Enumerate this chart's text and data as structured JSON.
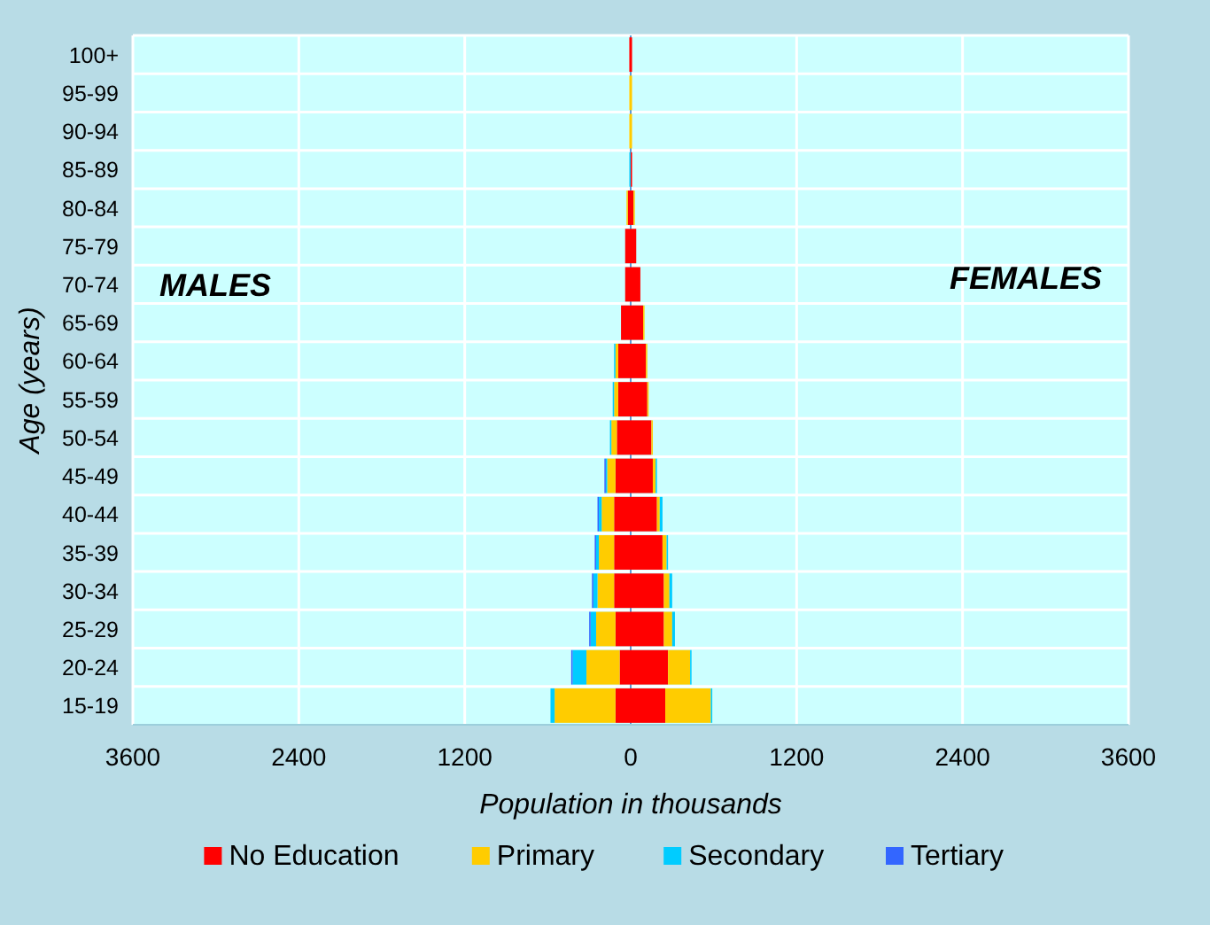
{
  "chart_data": {
    "type": "bar",
    "orientation": "horizontal",
    "stacked": true,
    "xlabel": "Population in thousands",
    "ylabel": "Age (years)",
    "annotations": [
      "MALES",
      "FEMALES"
    ],
    "categories": [
      "100+",
      "95-99",
      "90-94",
      "85-89",
      "80-84",
      "75-79",
      "70-74",
      "65-69",
      "60-64",
      "55-59",
      "50-54",
      "45-49",
      "40-44",
      "35-39",
      "30-34",
      "25-29",
      "20-24",
      "15-19"
    ],
    "series": [
      {
        "name": "No Education",
        "color": "#ff0000",
        "values": [
          -10,
          null,
          null,
          null,
          -20,
          -40,
          -40,
          -70,
          -90,
          -90,
          -100,
          -110,
          -120,
          -120,
          -120,
          -110,
          -80,
          -110
        ]
      },
      {
        "name": "Primary",
        "color": "#ffcc00",
        "values": [
          null,
          -10,
          -10,
          null,
          -10,
          null,
          null,
          null,
          -20,
          -30,
          -40,
          -60,
          -90,
          -110,
          -120,
          -140,
          -240,
          -440
        ]
      },
      {
        "name": "Secondary",
        "color": "#00ccff",
        "values": [
          null,
          null,
          null,
          -10,
          null,
          null,
          null,
          null,
          -10,
          -10,
          -10,
          -10,
          -20,
          -20,
          -30,
          -40,
          -100,
          -30
        ]
      },
      {
        "name": "Tertiary",
        "color": "#3366ff",
        "values": [
          null,
          null,
          null,
          null,
          null,
          null,
          null,
          null,
          null,
          null,
          null,
          -10,
          -10,
          -10,
          -10,
          -10,
          -10,
          null
        ]
      },
      {
        "color": "#ff0000",
        "values": [
          10,
          null,
          null,
          10,
          20,
          40,
          70,
          90,
          110,
          120,
          150,
          160,
          190,
          230,
          240,
          240,
          270,
          250
        ]
      },
      {
        "color": "#ffcc00",
        "values": [
          null,
          10,
          10,
          null,
          10,
          null,
          null,
          10,
          10,
          10,
          10,
          20,
          20,
          30,
          40,
          60,
          160,
          330
        ]
      },
      {
        "color": "#00ccff",
        "values": [
          null,
          null,
          null,
          null,
          null,
          null,
          null,
          null,
          null,
          null,
          null,
          10,
          20,
          10,
          20,
          20,
          10,
          10
        ]
      }
    ],
    "ref_lines": [
      {
        "axis": "x",
        "value": 0,
        "color": "#5b9bd5"
      }
    ],
    "xlim": [
      -3600,
      3600
    ],
    "xticks": [
      {
        "value": -3600,
        "label": "3600"
      },
      {
        "value": -2400,
        "label": "2400"
      },
      {
        "value": -1200,
        "label": "1200"
      },
      0,
      1200,
      2400,
      3600
    ],
    "grid": true,
    "legend": "bottom"
  }
}
